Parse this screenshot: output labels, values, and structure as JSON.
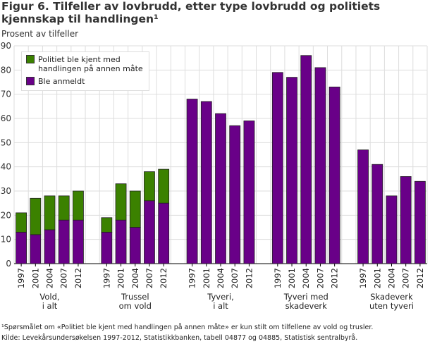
{
  "title": "Figur 6. Tilfeller av lovbrudd, etter type lovbrudd og politiets kjennskap til handlingen¹",
  "chart_data": {
    "type": "bar",
    "stacked": true,
    "ylabel": "Prosent av tilfeller",
    "ylim": [
      0,
      90
    ],
    "yticks": [
      "0",
      "10",
      "20",
      "30",
      "40",
      "50",
      "60",
      "70",
      "80",
      "90"
    ],
    "grid": true,
    "legend_placement": "top-left",
    "groups": [
      {
        "label": "Vold, i alt",
        "label_lines": [
          "Vold,",
          "i alt"
        ],
        "categories": [
          "1997",
          "2001",
          "2004",
          "2007",
          "2012"
        ],
        "anmeldt": [
          13,
          12,
          14,
          18,
          18
        ],
        "kjent_annen": [
          8,
          15,
          14,
          10,
          12
        ]
      },
      {
        "label": "Trussel om vold",
        "label_lines": [
          "Trussel",
          "om vold"
        ],
        "categories": [
          "1997",
          "2001",
          "2004",
          "2007",
          "2012"
        ],
        "anmeldt": [
          13,
          18,
          15,
          26,
          25
        ],
        "kjent_annen": [
          6,
          15,
          15,
          12,
          14
        ]
      },
      {
        "label": "Tyveri, i alt",
        "label_lines": [
          "Tyveri,",
          "i alt"
        ],
        "categories": [
          "1997",
          "2001",
          "2004",
          "2007",
          "2012"
        ],
        "anmeldt": [
          68,
          67,
          62,
          57,
          59
        ],
        "kjent_annen": [
          0,
          0,
          0,
          0,
          0
        ]
      },
      {
        "label": "Tyveri med skadeverk",
        "label_lines": [
          "Tyveri med",
          "skadeverk"
        ],
        "categories": [
          "1997",
          "2001",
          "2004",
          "2007",
          "2012"
        ],
        "anmeldt": [
          79,
          77,
          86,
          81,
          73
        ],
        "kjent_annen": [
          0,
          0,
          0,
          0,
          0
        ]
      },
      {
        "label": "Skadeverk uten tyveri",
        "label_lines": [
          "Skadeverk",
          "uten tyveri"
        ],
        "categories": [
          "1997",
          "2001",
          "2004",
          "2007",
          "2012"
        ],
        "anmeldt": [
          47,
          41,
          28,
          36,
          34
        ],
        "kjent_annen": [
          0,
          0,
          0,
          0,
          0
        ]
      }
    ],
    "series": [
      {
        "name": "Ble anmeldt",
        "key": "anmeldt",
        "color": "#690088"
      },
      {
        "name": "Politiet ble kjent med handlingen på annen måte",
        "key": "kjent_annen",
        "color": "#3b8100"
      }
    ],
    "legend": {
      "item1_line1": "Politiet ble kjent med",
      "item1_line2": "handlingen på annen måte",
      "item2": "Ble anmeldt"
    }
  },
  "notes": {
    "footnote": "¹Spørsmålet om «Politiet ble kjent med handlingen på annen måte» er kun stilt om tilfellene av vold og trusler.",
    "source": "Kilde: Levekårsundersøkelsen 1997-2012, Statistikkbanken, tabell 04877 og 04885, Statistisk sentralbyrå."
  }
}
